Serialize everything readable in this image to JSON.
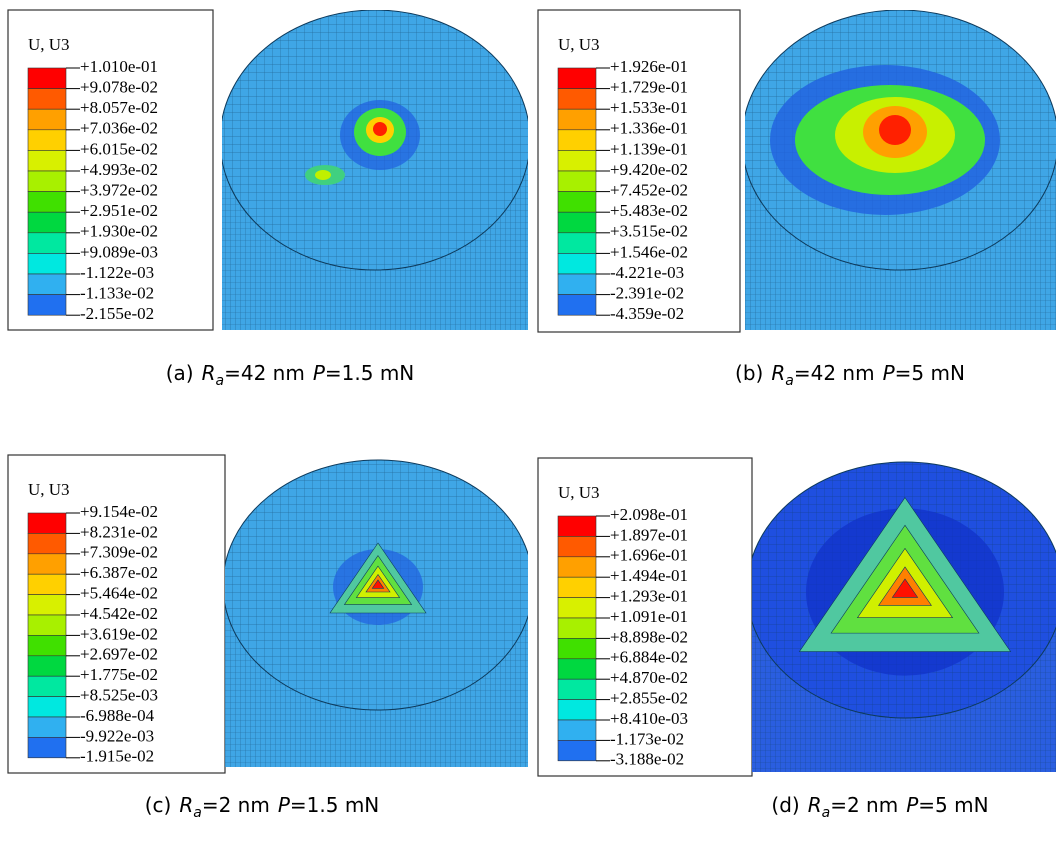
{
  "panels": [
    {
      "legend_title": "U, U3",
      "legend_labels": [
        "+1.010e-01",
        "+9.078e-02",
        "+8.057e-02",
        "+7.036e-02",
        "+6.015e-02",
        "+4.993e-02",
        "+3.972e-02",
        "+2.951e-02",
        "+1.930e-02",
        "+9.089e-03",
        "-1.122e-03",
        "-1.133e-02",
        "-2.155e-02"
      ],
      "caption": {
        "label": "(a)",
        "r": "R",
        "sub": "a",
        "ra": "=42 nm",
        "p": "P",
        "pv": "=1.5 mN"
      }
    },
    {
      "legend_title": "U, U3",
      "legend_labels": [
        "+1.926e-01",
        "+1.729e-01",
        "+1.533e-01",
        "+1.336e-01",
        "+1.139e-01",
        "+9.420e-02",
        "+7.452e-02",
        "+5.483e-02",
        "+3.515e-02",
        "+1.546e-02",
        "-4.221e-03",
        "-2.391e-02",
        "-4.359e-02"
      ],
      "caption": {
        "label": "(b)",
        "r": "R",
        "sub": "a",
        "ra": "=42 nm",
        "p": "P",
        "pv": "=5 mN"
      }
    },
    {
      "legend_title": "U, U3",
      "legend_labels": [
        "+9.154e-02",
        "+8.231e-02",
        "+7.309e-02",
        "+6.387e-02",
        "+5.464e-02",
        "+4.542e-02",
        "+3.619e-02",
        "+2.697e-02",
        "+1.775e-02",
        "+8.525e-03",
        "-6.988e-04",
        "-9.922e-03",
        "-1.915e-02"
      ],
      "caption": {
        "label": "(c)",
        "r": "R",
        "sub": "a",
        "ra": "=2 nm",
        "p": "P",
        "pv": "=1.5 mN"
      }
    },
    {
      "legend_title": "U, U3",
      "legend_labels": [
        "+2.098e-01",
        "+1.897e-01",
        "+1.696e-01",
        "+1.494e-01",
        "+1.293e-01",
        "+1.091e-01",
        "+8.898e-02",
        "+6.884e-02",
        "+4.870e-02",
        "+2.855e-02",
        "+8.410e-03",
        "-1.173e-02",
        "-3.188e-02"
      ],
      "caption": {
        "label": "(d)",
        "r": "R",
        "sub": "a",
        "ra": "=2 nm",
        "p": "P",
        "pv": "=5 mN"
      }
    }
  ]
}
